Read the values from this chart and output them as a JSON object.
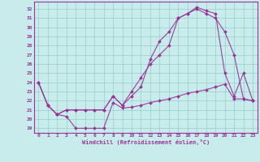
{
  "xlabel": "Windchill (Refroidissement éolien,°C)",
  "bg_color": "#c8ecec",
  "line_color": "#993399",
  "grid_color": "#99cccc",
  "xlim": [
    -0.5,
    23.5
  ],
  "ylim": [
    18.5,
    32.8
  ],
  "yticks": [
    19,
    20,
    21,
    22,
    23,
    24,
    25,
    26,
    27,
    28,
    29,
    30,
    31,
    32
  ],
  "xticks": [
    0,
    1,
    2,
    3,
    4,
    5,
    6,
    7,
    8,
    9,
    10,
    11,
    12,
    13,
    14,
    15,
    16,
    17,
    18,
    19,
    20,
    21,
    22,
    23
  ],
  "series1_x": [
    0,
    1,
    2,
    3,
    4,
    5,
    6,
    7,
    8,
    9,
    10,
    11,
    12,
    13,
    14,
    15,
    16,
    17,
    18,
    19,
    20,
    21,
    22,
    23
  ],
  "series1_y": [
    24.0,
    21.5,
    20.5,
    20.3,
    19.0,
    19.0,
    19.0,
    19.0,
    21.8,
    21.2,
    21.3,
    21.5,
    21.8,
    22.0,
    22.2,
    22.5,
    22.8,
    23.0,
    23.2,
    23.5,
    23.8,
    22.2,
    22.2,
    22.0
  ],
  "series2_x": [
    0,
    1,
    2,
    3,
    4,
    5,
    6,
    7,
    8,
    9,
    10,
    11,
    12,
    13,
    14,
    15,
    16,
    17,
    18,
    19,
    20,
    21,
    22,
    23
  ],
  "series2_y": [
    24.0,
    21.5,
    20.5,
    21.0,
    21.0,
    21.0,
    21.0,
    21.0,
    22.5,
    21.5,
    22.5,
    23.5,
    26.5,
    28.5,
    29.5,
    31.0,
    31.5,
    32.0,
    31.5,
    31.0,
    29.5,
    27.0,
    22.2,
    22.0
  ],
  "series3_x": [
    0,
    1,
    2,
    3,
    4,
    5,
    6,
    7,
    8,
    9,
    10,
    11,
    12,
    13,
    14,
    15,
    16,
    17,
    18,
    19,
    20,
    21,
    22,
    23
  ],
  "series3_y": [
    24.0,
    21.5,
    20.5,
    21.0,
    21.0,
    21.0,
    21.0,
    21.0,
    22.5,
    21.5,
    23.0,
    24.5,
    26.0,
    27.0,
    28.0,
    31.0,
    31.5,
    32.2,
    31.8,
    31.5,
    25.0,
    22.5,
    25.0,
    22.0
  ]
}
